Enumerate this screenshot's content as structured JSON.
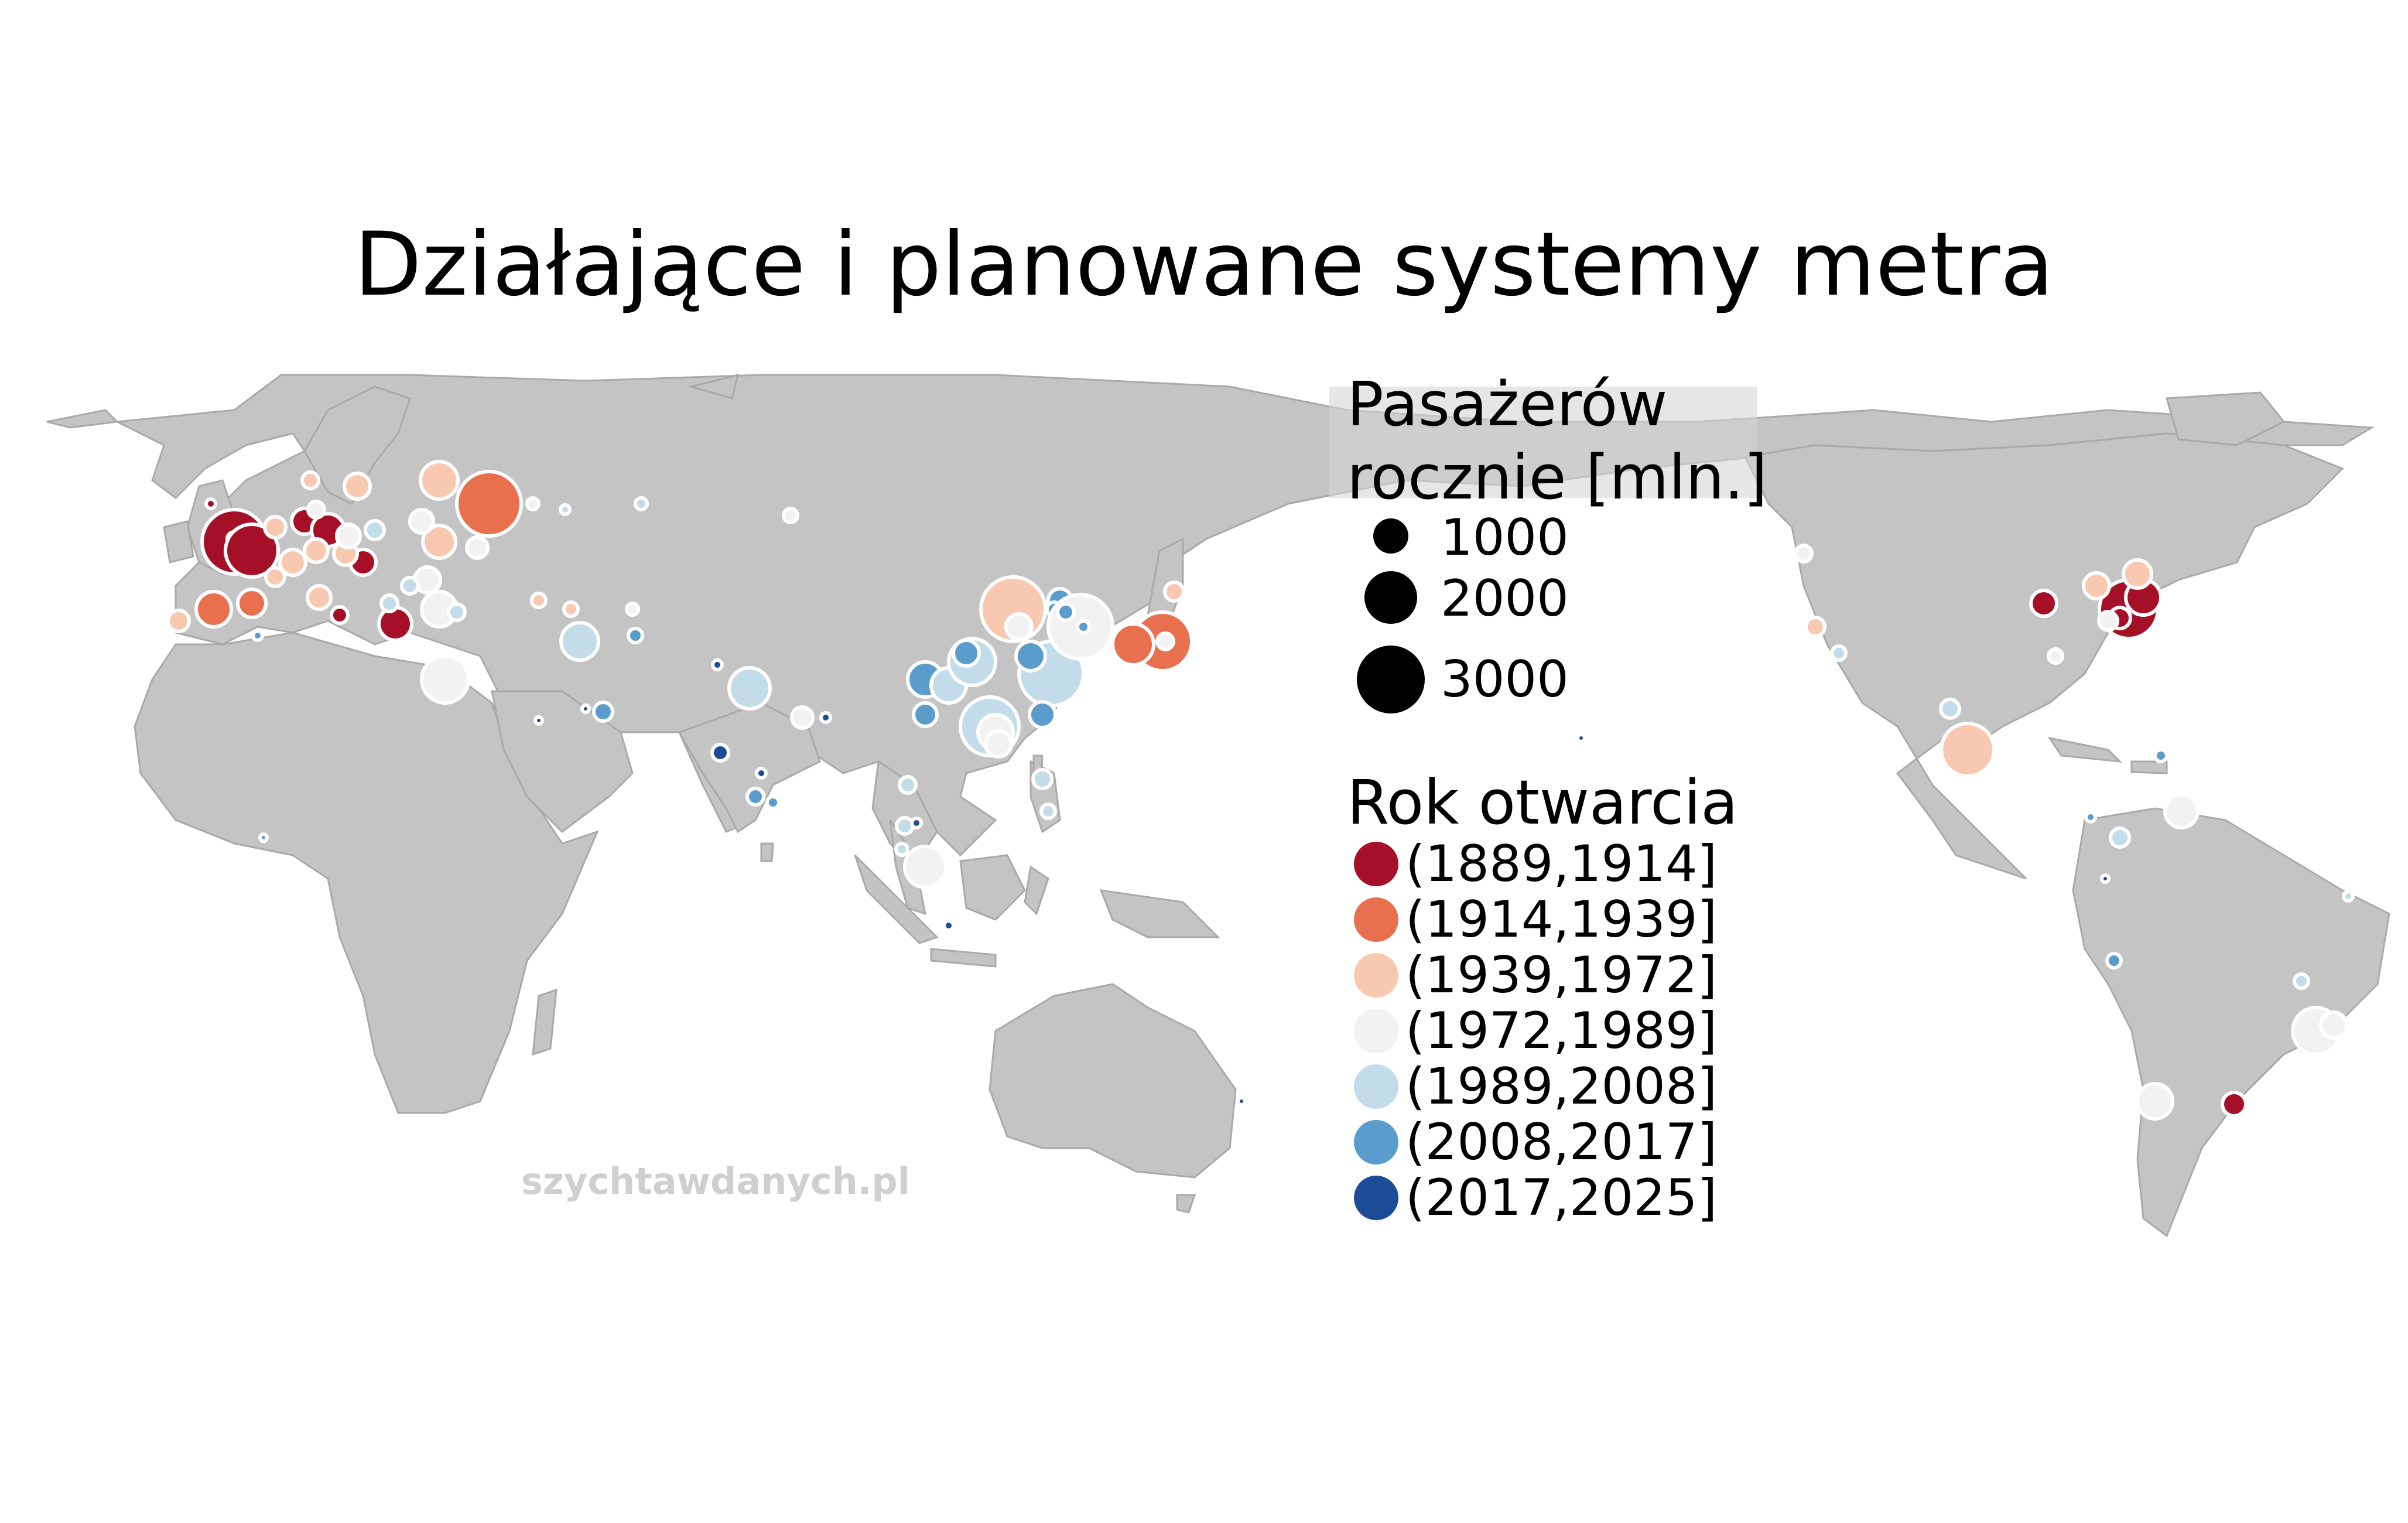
{
  "title": "Działające i planowane systemy metra",
  "watermark": "szychtawdanych.pl",
  "legend": {
    "size_title_line1": "Pasażerów",
    "size_title_line2": "rocznie [mln.]",
    "size_items": [
      {
        "label": "1000",
        "value": 1000
      },
      {
        "label": "2000",
        "value": 2000
      },
      {
        "label": "3000",
        "value": 3000
      }
    ],
    "color_title": "Rok otwarcia",
    "color_items": [
      {
        "label": "(1889,1914]",
        "color": "#a50f27"
      },
      {
        "label": "(1914,1939]",
        "color": "#e8704f"
      },
      {
        "label": "(1939,1972]",
        "color": "#f9c8b0"
      },
      {
        "label": "(1972,1989]",
        "color": "#f2f2f2"
      },
      {
        "label": "(1989,2008]",
        "color": "#c2dcea"
      },
      {
        "label": "(2008,2017]",
        "color": "#5a9ccb"
      },
      {
        "label": "(2017,2025]",
        "color": "#1c4c98"
      }
    ]
  },
  "colors": {
    "land": "#c4c4c4",
    "ocean": "#ffffff",
    "border": "#a9a9a9"
  }
}
